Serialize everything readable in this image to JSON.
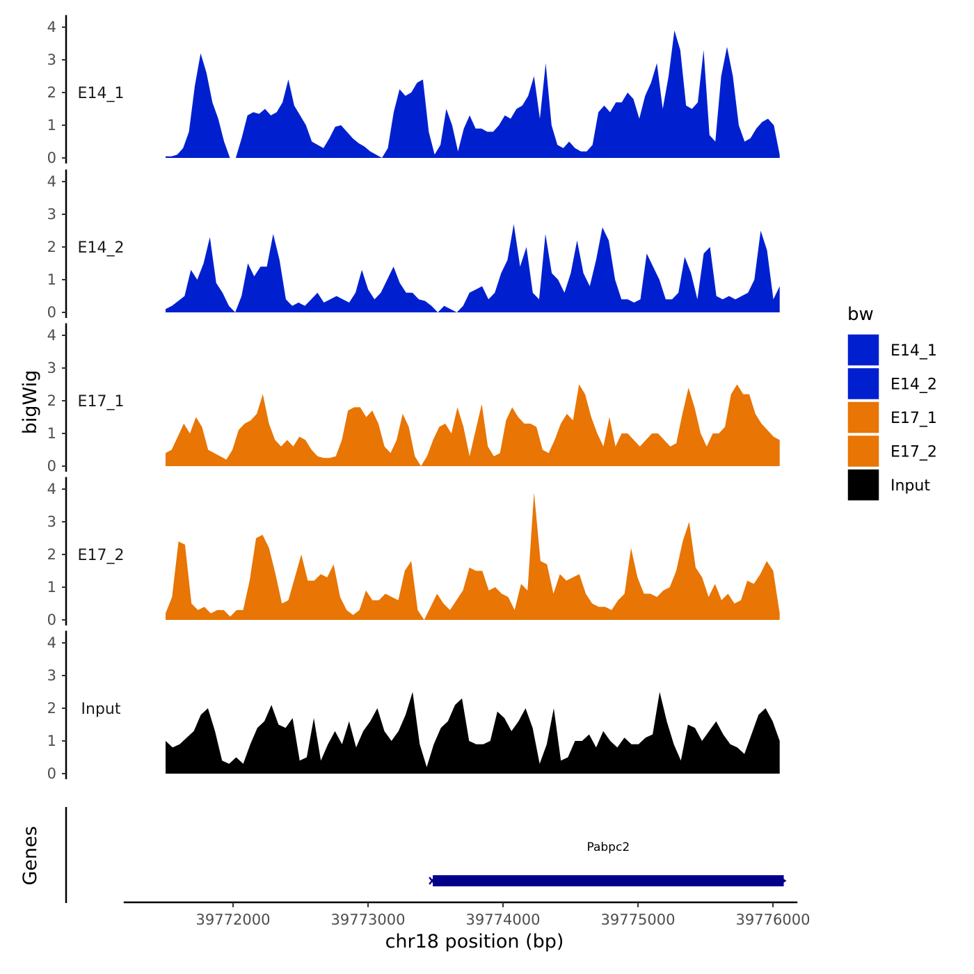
{
  "chart_data": {
    "type": "area",
    "title": "",
    "xlabel": "chr18 position (bp)",
    "ylabel": "bigWig",
    "genes_label": "Genes",
    "xlim": [
      39771200,
      39776300
    ],
    "ylim": [
      0,
      4.2
    ],
    "x_ticks": [
      39772000,
      39773000,
      39774000,
      39775000,
      39776000
    ],
    "x_tick_labels": [
      "39772000",
      "39773000",
      "39774000",
      "39775000",
      "39776000"
    ],
    "y_ticks": [
      0,
      1,
      2,
      3,
      4
    ],
    "y_tick_labels": [
      "0",
      "1",
      "2",
      "3",
      "4"
    ],
    "legend": {
      "title": "bw",
      "position": "right",
      "entries": [
        {
          "label": "E14_1",
          "color": "#0020D0"
        },
        {
          "label": "E14_2",
          "color": "#0020D0"
        },
        {
          "label": "E17_1",
          "color": "#E87504"
        },
        {
          "label": "E17_2",
          "color": "#E87504"
        },
        {
          "label": "Input",
          "color": "#000000"
        }
      ]
    },
    "x_start": 39771500,
    "x_end": 39776050,
    "series": [
      {
        "name": "E14_1",
        "color": "#0020D0",
        "values": [
          0.05,
          0.05,
          0.1,
          0.3,
          0.8,
          2.2,
          3.2,
          2.6,
          1.7,
          1.2,
          0.5,
          0,
          0,
          0.6,
          1.3,
          1.4,
          1.35,
          1.5,
          1.3,
          1.4,
          1.7,
          2.4,
          1.6,
          1.3,
          1.0,
          0.5,
          0.4,
          0.3,
          0.6,
          0.95,
          1.0,
          0.8,
          0.6,
          0.45,
          0.35,
          0.2,
          0.1,
          0,
          0.3,
          1.4,
          2.1,
          1.9,
          2.0,
          2.3,
          2.4,
          0.8,
          0.1,
          0.4,
          1.5,
          1.0,
          0.2,
          0.9,
          1.3,
          0.9,
          0.9,
          0.8,
          0.8,
          1.0,
          1.3,
          1.2,
          1.5,
          1.6,
          1.9,
          2.5,
          1.2,
          2.9,
          1.0,
          0.4,
          0.3,
          0.5,
          0.3,
          0.2,
          0.2,
          0.4,
          1.4,
          1.6,
          1.4,
          1.7,
          1.7,
          2.0,
          1.8,
          1.2,
          1.9,
          2.3,
          2.9,
          1.5,
          2.5,
          3.9,
          3.3,
          1.6,
          1.5,
          1.7,
          3.3,
          0.7,
          0.5,
          2.5,
          3.4,
          2.5,
          1.0,
          0.5,
          0.6,
          0.9,
          1.1,
          1.2,
          1.0,
          0.1
        ]
      },
      {
        "name": "E14_2",
        "color": "#0020D0",
        "values": [
          0.1,
          0.2,
          0.35,
          0.5,
          1.3,
          1.0,
          1.5,
          2.3,
          0.9,
          0.6,
          0.2,
          0,
          0.5,
          1.5,
          1.1,
          1.4,
          1.4,
          2.4,
          1.6,
          0.4,
          0.2,
          0.3,
          0.2,
          0.4,
          0.6,
          0.3,
          0.4,
          0.5,
          0.4,
          0.3,
          0.6,
          1.3,
          0.7,
          0.4,
          0.6,
          1.0,
          1.4,
          0.9,
          0.6,
          0.6,
          0.4,
          0.35,
          0.2,
          0,
          0.2,
          0.1,
          0,
          0.2,
          0.6,
          0.7,
          0.8,
          0.4,
          0.6,
          1.2,
          1.6,
          2.7,
          1.4,
          2.0,
          0.6,
          0.4,
          2.4,
          1.2,
          1.0,
          0.6,
          1.2,
          2.2,
          1.2,
          0.8,
          1.6,
          2.6,
          2.2,
          1.0,
          0.4,
          0.4,
          0.3,
          0.4,
          1.8,
          1.4,
          1.0,
          0.4,
          0.4,
          0.6,
          1.7,
          1.2,
          0.4,
          1.8,
          2.0,
          0.5,
          0.4,
          0.5,
          0.4,
          0.5,
          0.6,
          1.0,
          2.5,
          1.9,
          0.4,
          0.8
        ]
      },
      {
        "name": "E17_1",
        "color": "#E87504",
        "values": [
          0.4,
          0.5,
          0.9,
          1.3,
          1.0,
          1.5,
          1.2,
          0.5,
          0.4,
          0.3,
          0.2,
          0.5,
          1.1,
          1.3,
          1.4,
          1.6,
          2.2,
          1.3,
          0.8,
          0.6,
          0.8,
          0.6,
          0.9,
          0.8,
          0.5,
          0.3,
          0.25,
          0.25,
          0.3,
          0.8,
          1.7,
          1.8,
          1.8,
          1.5,
          1.7,
          1.3,
          0.6,
          0.4,
          0.8,
          1.6,
          1.2,
          0.3,
          0,
          0.3,
          0.8,
          1.2,
          1.3,
          1.0,
          1.8,
          1.2,
          0.3,
          1.1,
          1.9,
          0.6,
          0.3,
          0.4,
          1.4,
          1.8,
          1.5,
          1.3,
          1.3,
          1.2,
          0.5,
          0.4,
          0.8,
          1.3,
          1.6,
          1.4,
          2.5,
          2.2,
          1.5,
          1.0,
          0.6,
          1.5,
          0.6,
          1.0,
          1.0,
          0.8,
          0.6,
          0.8,
          1.0,
          1.0,
          0.8,
          0.6,
          0.7,
          1.6,
          2.4,
          1.8,
          1.0,
          0.6,
          1.0,
          1.0,
          1.2,
          2.2,
          2.5,
          2.2,
          2.2,
          1.6,
          1.3,
          1.1,
          0.9,
          0.8
        ]
      },
      {
        "name": "E17_2",
        "color": "#E87504",
        "values": [
          0.2,
          0.7,
          2.4,
          2.3,
          0.5,
          0.3,
          0.4,
          0.2,
          0.3,
          0.3,
          0.1,
          0.3,
          0.3,
          1.2,
          2.5,
          2.6,
          2.2,
          1.4,
          0.5,
          0.6,
          1.3,
          2.0,
          1.2,
          1.2,
          1.4,
          1.3,
          1.7,
          0.7,
          0.3,
          0.15,
          0.3,
          0.9,
          0.6,
          0.6,
          0.8,
          0.7,
          0.6,
          1.5,
          1.8,
          0.3,
          0,
          0.4,
          0.8,
          0.5,
          0.3,
          0.6,
          0.9,
          1.6,
          1.5,
          1.5,
          0.9,
          1.0,
          0.8,
          0.7,
          0.3,
          1.1,
          0.9,
          3.9,
          1.8,
          1.7,
          0.8,
          1.4,
          1.2,
          1.3,
          1.4,
          0.8,
          0.5,
          0.4,
          0.4,
          0.3,
          0.6,
          0.8,
          2.2,
          1.3,
          0.8,
          0.8,
          0.7,
          0.9,
          1.0,
          1.5,
          2.4,
          3.0,
          1.6,
          1.3,
          0.7,
          1.1,
          0.6,
          0.8,
          0.5,
          0.6,
          1.2,
          1.1,
          1.4,
          1.8,
          1.5,
          0.2
        ]
      },
      {
        "name": "Input",
        "color": "#000000",
        "values": [
          1.0,
          0.8,
          0.9,
          1.1,
          1.3,
          1.8,
          2.0,
          1.3,
          0.4,
          0.3,
          0.5,
          0.3,
          0.9,
          1.4,
          1.6,
          2.1,
          1.5,
          1.4,
          1.7,
          0.4,
          0.5,
          1.7,
          0.4,
          0.9,
          1.3,
          0.9,
          1.6,
          0.8,
          1.3,
          1.6,
          2.0,
          1.3,
          1.0,
          1.3,
          1.8,
          2.5,
          0.9,
          0.2,
          0.9,
          1.4,
          1.6,
          2.1,
          2.3,
          1.0,
          0.9,
          0.9,
          1.0,
          1.9,
          1.7,
          1.3,
          1.6,
          2.0,
          1.4,
          0.3,
          0.9,
          2.0,
          0.4,
          0.5,
          1.0,
          1.0,
          1.2,
          0.8,
          1.3,
          1.0,
          0.8,
          1.1,
          0.9,
          0.9,
          1.1,
          1.2,
          2.5,
          1.6,
          0.9,
          0.4,
          1.5,
          1.4,
          1.0,
          1.3,
          1.6,
          1.2,
          0.9,
          0.8,
          0.6,
          1.2,
          1.8,
          2.0,
          1.6,
          1.0
        ]
      }
    ],
    "genes": [
      {
        "name": "Pabpc2",
        "start": 39773480,
        "end": 39776080,
        "strand": "-",
        "color": "#00008B"
      }
    ]
  }
}
